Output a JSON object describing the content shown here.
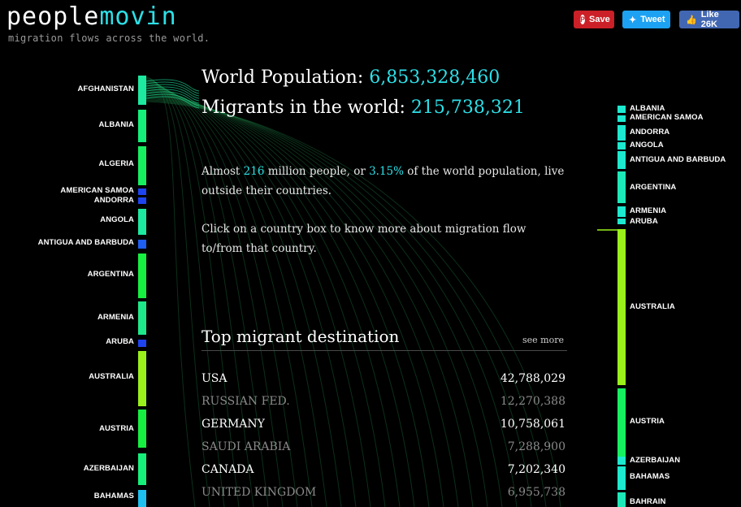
{
  "brand": {
    "part1": "people",
    "part2": "movin",
    "tagline": "migration flows across the world."
  },
  "social": {
    "save": "Save",
    "tweet": "Tweet",
    "like": "Like 26K"
  },
  "stats": {
    "world_label": "World Population:",
    "world_value": "6,853,328,460",
    "migrants_label": "Migrants in the world:",
    "migrants_value": "215,738,321"
  },
  "intro": {
    "p1_a": "Almost ",
    "p1_num": "216",
    "p1_b": " million people, or ",
    "p1_pct": "3.15%",
    "p1_c": " of the world population, live outside their countries.",
    "p2": "Click on a country box to know more about migration flow to/from that country."
  },
  "destinations": {
    "title": "Top migrant destination",
    "see_more": "see more",
    "rows": [
      {
        "country": "USA",
        "value": "42,788,029"
      },
      {
        "country": "RUSSIAN FED.",
        "value": "12,270,388"
      },
      {
        "country": "GERMANY",
        "value": "10,758,061"
      },
      {
        "country": "SAUDI ARABIA",
        "value": "7,288,900"
      },
      {
        "country": "CANADA",
        "value": "7,202,340"
      },
      {
        "country": "UNITED KINGDOM",
        "value": "6,955,738"
      }
    ]
  },
  "origin_countries": [
    {
      "name": "AFGHANISTAN",
      "color": "#1de9a0"
    },
    {
      "name": "ALBANIA",
      "color": "#14f07a"
    },
    {
      "name": "ALGERIA",
      "color": "#16f060"
    },
    {
      "name": "AMERICAN SAMOA",
      "color": "#1e44f0"
    },
    {
      "name": "ANDORRA",
      "color": "#1e44f0"
    },
    {
      "name": "ANGOLA",
      "color": "#1de9a0"
    },
    {
      "name": "ANTIGUA AND BARBUDA",
      "color": "#1e5ef0"
    },
    {
      "name": "ARGENTINA",
      "color": "#16f040"
    },
    {
      "name": "ARMENIA",
      "color": "#1de98a"
    },
    {
      "name": "ARUBA",
      "color": "#1e44f0"
    },
    {
      "name": "AUSTRALIA",
      "color": "#9af01a"
    },
    {
      "name": "AUSTRIA",
      "color": "#16f040"
    },
    {
      "name": "AZERBAIJAN",
      "color": "#16f07a"
    },
    {
      "name": "BAHAMAS",
      "color": "#1ec0f0"
    }
  ],
  "destination_countries": [
    {
      "name": "ALBANIA",
      "color": "#1de9d0"
    },
    {
      "name": "AMERICAN SAMOA",
      "color": "#1de9d0"
    },
    {
      "name": "ANDORRA",
      "color": "#1de9d0"
    },
    {
      "name": "ANGOLA",
      "color": "#1de9d0"
    },
    {
      "name": "ANTIGUA AND BARBUDA",
      "color": "#1de9d0"
    },
    {
      "name": "ARGENTINA",
      "color": "#1de9b8"
    },
    {
      "name": "ARMENIA",
      "color": "#1de9d0"
    },
    {
      "name": "ARUBA",
      "color": "#1de9d0"
    },
    {
      "name": "AUSTRALIA",
      "color": "#9af01a"
    },
    {
      "name": "AUSTRIA",
      "color": "#16f060"
    },
    {
      "name": "AZERBAIJAN",
      "color": "#1de9d0"
    },
    {
      "name": "BAHAMAS",
      "color": "#1de9d0"
    },
    {
      "name": "BAHRAIN",
      "color": "#1de9b8"
    }
  ]
}
